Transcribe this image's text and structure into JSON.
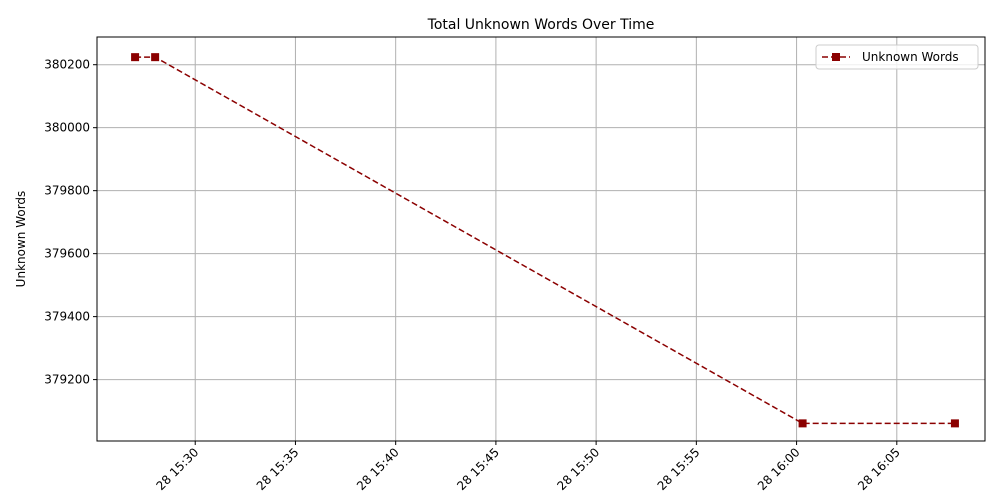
{
  "chart_data": {
    "type": "line",
    "title": "Total Unknown Words Over Time",
    "xlabel": "",
    "ylabel": "Unknown Words",
    "x_tick_labels": [
      "28 15:30",
      "28 15:35",
      "28 15:40",
      "28 15:45",
      "28 15:50",
      "28 15:55",
      "28 16:00",
      "28 16:05"
    ],
    "y_tick_labels": [
      "379200",
      "379400",
      "379600",
      "379800",
      "380000",
      "380200"
    ],
    "y_ticks": [
      379200,
      379400,
      379600,
      379800,
      380000,
      380200
    ],
    "x_ticks_minutes": [
      30,
      35,
      40,
      45,
      50,
      55,
      60,
      65
    ],
    "xlim_minutes": [
      25.1,
      69.4
    ],
    "ylim": [
      379005,
      380288
    ],
    "grid": true,
    "legend_position": "upper right",
    "series": [
      {
        "name": "Unknown Words",
        "color": "#8b0000",
        "line_style": "dashed",
        "marker": "square",
        "x_minutes": [
          27.0,
          28.0,
          60.3,
          67.9
        ],
        "values": [
          380224,
          380224,
          379061,
          379061
        ]
      }
    ]
  }
}
